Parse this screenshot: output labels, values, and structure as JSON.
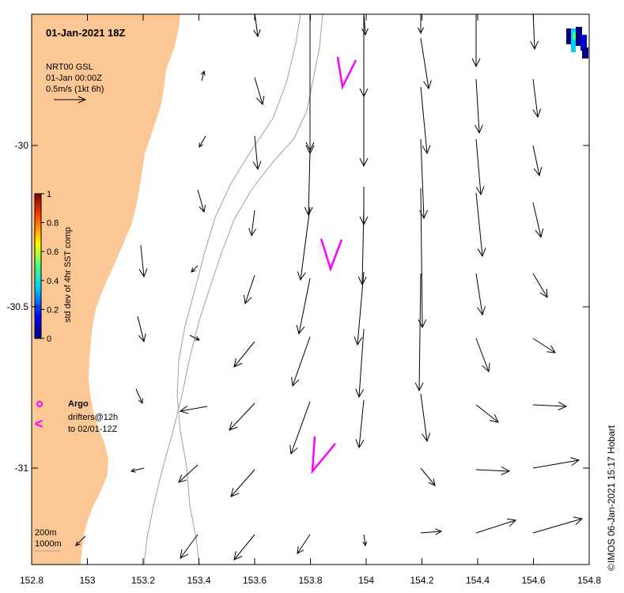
{
  "title": "01-Jan-2021 18Z",
  "legend": {
    "source": "NRT00 GSL",
    "time": "01-Jan 00:00Z",
    "scale": "0.5m/s (1kt 6h)"
  },
  "colorbar": {
    "label": "std dev of 4hr SST comp",
    "ticks": [
      "0",
      "0.2",
      "0.4",
      "0.6",
      "0.8",
      "1"
    ]
  },
  "argo": {
    "label": "Argo",
    "symbol": "o",
    "color": "#ff00ff"
  },
  "drifters": {
    "symbol": "<",
    "line1": "drifters@12h",
    "line2": "to 02/01-12Z"
  },
  "isobaths": {
    "shallow": "200m",
    "deep": "1000m"
  },
  "credit": "IMOS 06-Jan-2021 15:17 Hobart",
  "copyright_symbol": "©",
  "axes": {
    "x_ticks": [
      "152.8",
      "153",
      "153.2",
      "153.4",
      "153.6",
      "153.8",
      "154",
      "154.2",
      "154.4",
      "154.6",
      "154.8"
    ],
    "y_ticks": [
      "-30",
      "-30.5",
      "-31"
    ]
  },
  "colors": {
    "land": "#fbc795",
    "isobath": "#a0a0a0",
    "drifter": "#ff00ff",
    "arrow": "#000000"
  }
}
